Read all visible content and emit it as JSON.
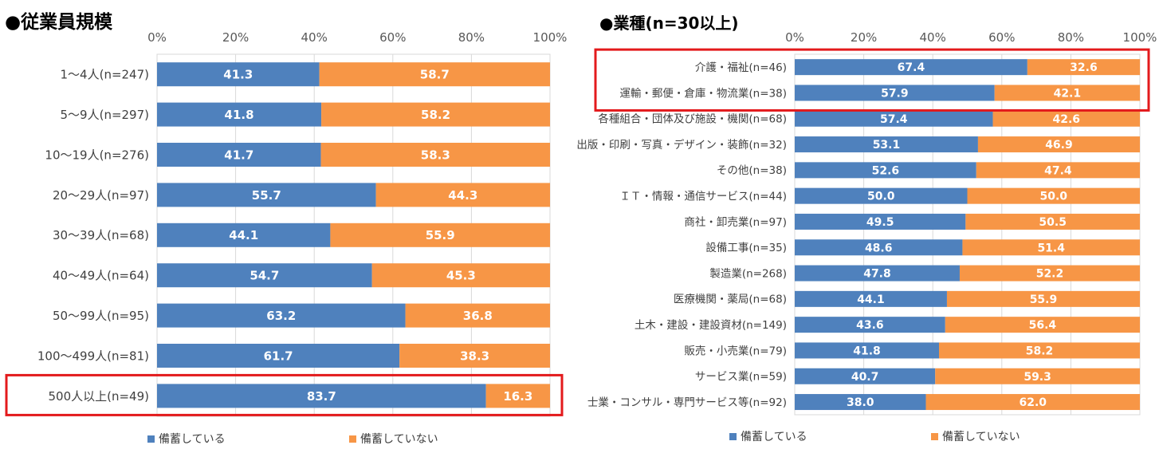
{
  "chart_data": [
    {
      "type": "bar",
      "stacked": true,
      "orientation": "horizontal",
      "title": "●従業員規模",
      "xlim": [
        0,
        100
      ],
      "ticks": [
        "0%",
        "20%",
        "40%",
        "60%",
        "80%",
        "100%"
      ],
      "categories": [
        "1～4人(n=247)",
        "5～9人(n=297)",
        "10～19人(n=276)",
        "20～29人(n=97)",
        "30～39人(n=68)",
        "40～49人(n=64)",
        "50～99人(n=95)",
        "100～499人(n=81)",
        "500人以上(n=49)"
      ],
      "series": [
        {
          "name": "備蓄している",
          "color": "#4f81bd",
          "values": [
            41.3,
            41.8,
            41.7,
            55.7,
            44.1,
            54.7,
            63.2,
            61.7,
            83.7
          ]
        },
        {
          "name": "備蓄していない",
          "color": "#f79646",
          "values": [
            58.7,
            58.2,
            58.3,
            44.3,
            55.9,
            45.3,
            36.8,
            38.3,
            16.3
          ]
        }
      ],
      "highlighted_categories": [
        "500人以上(n=49)"
      ],
      "legend": "bottom"
    },
    {
      "type": "bar",
      "stacked": true,
      "orientation": "horizontal",
      "title": "●業種(n=30以上)",
      "xlim": [
        0,
        100
      ],
      "ticks": [
        "0%",
        "20%",
        "40%",
        "60%",
        "80%",
        "100%"
      ],
      "categories": [
        "介護・福祉(n=46)",
        "運輸・郵便・倉庫・物流業(n=38)",
        "各種組合・団体及び施設・機関(n=68)",
        "出版・印刷・写真・デザイン・装飾(n=32)",
        "その他(n=38)",
        "ＩＴ・情報・通信サービス(n=44)",
        "商社・卸売業(n=97)",
        "設備工事(n=35)",
        "製造業(n=268)",
        "医療機関・薬局(n=68)",
        "土木・建設・建設資材(n=149)",
        "販売・小売業(n=79)",
        "サービス業(n=59)",
        "士業・コンサル・専門サービス等(n=92)"
      ],
      "series": [
        {
          "name": "備蓄している",
          "color": "#4f81bd",
          "values": [
            67.4,
            57.9,
            57.4,
            53.1,
            52.6,
            50.0,
            49.5,
            48.6,
            47.8,
            44.1,
            43.6,
            41.8,
            40.7,
            38.0
          ]
        },
        {
          "name": "備蓄していない",
          "color": "#f79646",
          "values": [
            32.6,
            42.1,
            42.6,
            46.9,
            47.4,
            50.0,
            50.5,
            51.4,
            52.2,
            55.9,
            56.4,
            58.2,
            59.3,
            62.0
          ]
        }
      ],
      "highlighted_categories": [
        "介護・福祉(n=46)",
        "運輸・郵便・倉庫・物流業(n=38)"
      ],
      "legend": "bottom"
    }
  ],
  "colors": {
    "blue": "#4f81bd",
    "orange": "#f79646",
    "highlight": "#e31a1c",
    "grid": "#d9d9d9"
  }
}
